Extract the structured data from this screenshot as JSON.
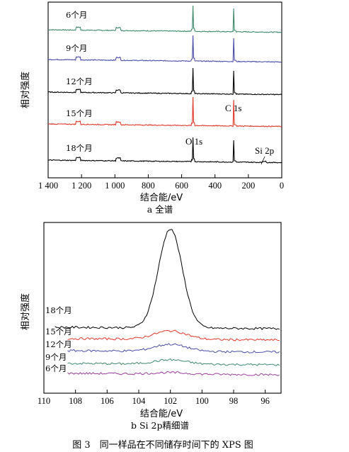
{
  "caption": "图 3　同一样品在不同储存时间下的 XPS 图",
  "chart_data": [
    {
      "type": "line",
      "subcaption": "a  全谱",
      "xlabel": "结合能/eV",
      "ylabel": "相对强度",
      "x_reversed": true,
      "xlim": [
        1400,
        0
      ],
      "xticks": [
        "1 400",
        "1 200",
        "1 000",
        "800",
        "600",
        "400",
        "200",
        "0"
      ],
      "xtick_values": [
        1400,
        1200,
        1000,
        800,
        600,
        400,
        200,
        0
      ],
      "annotations": [
        "O 1s",
        "C 1s",
        "Si 2p"
      ],
      "peaks_eV": {
        "O 1s": 532,
        "C 1s": 285,
        "Si 2p": 102
      },
      "series": [
        {
          "name": "6个月",
          "color": "#3f8a6b",
          "o1s_height": 34,
          "c1s_height": 30
        },
        {
          "name": "9个月",
          "color": "#4b4fa8",
          "o1s_height": 34,
          "c1s_height": 30
        },
        {
          "name": "12个月",
          "color": "#000000",
          "o1s_height": 34,
          "c1s_height": 30
        },
        {
          "name": "15个月",
          "color": "#e03a2a",
          "o1s_height": 38,
          "c1s_height": 34
        },
        {
          "name": "18个月",
          "color": "#000000",
          "o1s_height": 32,
          "c1s_height": 28
        }
      ]
    },
    {
      "type": "line",
      "subcaption": "b  Si 2p精细谱",
      "xlabel": "结合能/eV",
      "ylabel": "相对强度",
      "x_reversed": true,
      "xlim": [
        110,
        95
      ],
      "xticks": [
        "110",
        "108",
        "106",
        "104",
        "102",
        "100",
        "98",
        "96"
      ],
      "xtick_values": [
        110,
        108,
        106,
        104,
        102,
        100,
        98,
        96
      ],
      "peak_center_eV": 102,
      "series": [
        {
          "name": "18个月",
          "color": "#000000",
          "peak_height": 140
        },
        {
          "name": "15个月",
          "color": "#e03a2a",
          "peak_height": 12
        },
        {
          "name": "12个月",
          "color": "#4b4fa8",
          "peak_height": 10
        },
        {
          "name": "9个月",
          "color": "#3f8a6b",
          "peak_height": 6
        },
        {
          "name": "6个月",
          "color": "#9b3f9b",
          "peak_height": 2
        }
      ]
    }
  ]
}
